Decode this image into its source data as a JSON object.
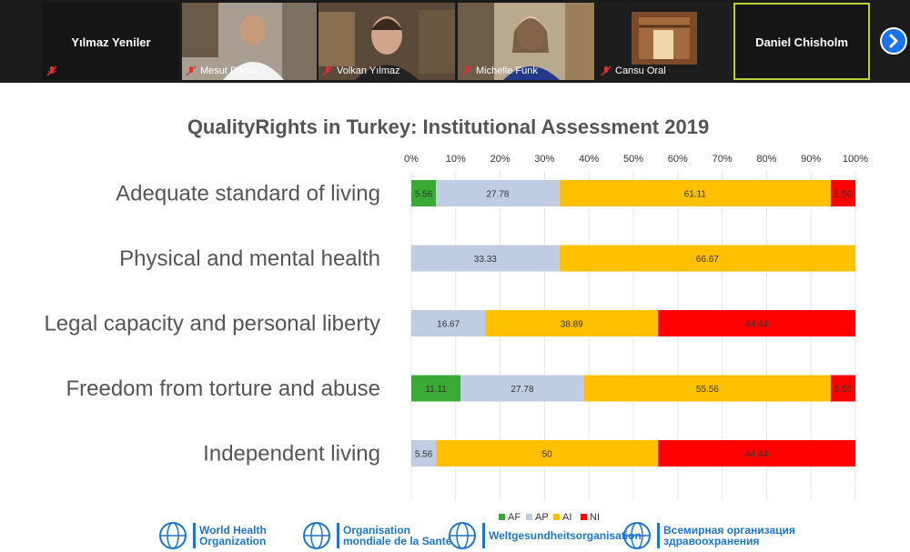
{
  "participants": [
    {
      "name": "Yılmaz Yeniler",
      "style": "name-only"
    },
    {
      "name": "Mesut Demir...",
      "style": "video"
    },
    {
      "name": "Volkan Yılmaz",
      "style": "video"
    },
    {
      "name": "Michelle Funk",
      "style": "video"
    },
    {
      "name": "Cansu Oral",
      "style": "video"
    },
    {
      "name": "Daniel Chisholm",
      "style": "name-only",
      "active": true
    }
  ],
  "colors": {
    "AF": "#3aa935",
    "AP": "#bfcce3",
    "AI": "#ffc000",
    "NI": "#ff0000",
    "strip": "#1b1b1b"
  },
  "chart_data": {
    "type": "bar",
    "orientation": "horizontal-stacked-100",
    "title": "QualityRights in Turkey: Institutional Assessment 2019",
    "x_ticks": [
      "0%",
      "10%",
      "20%",
      "30%",
      "40%",
      "50%",
      "60%",
      "70%",
      "80%",
      "90%",
      "100%"
    ],
    "xlim": [
      0,
      100
    ],
    "categories": [
      "Adequate standard of living",
      "Physical and mental health",
      "Legal capacity and personal liberty",
      "Freedom from torture and abuse",
      "Independent living"
    ],
    "series": [
      {
        "name": "AF",
        "values": [
          5.56,
          0,
          0,
          11.11,
          0
        ]
      },
      {
        "name": "AP",
        "values": [
          27.78,
          33.33,
          16.67,
          27.78,
          5.56
        ]
      },
      {
        "name": "AI",
        "values": [
          61.11,
          66.67,
          38.89,
          55.56,
          50
        ]
      },
      {
        "name": "NI",
        "values": [
          5.56,
          0,
          44.44,
          5.56,
          44.44
        ]
      }
    ],
    "legend": "bottom"
  },
  "footer": {
    "logos": [
      [
        "World Health",
        "Organization"
      ],
      [
        "Organisation",
        "mondiale de la Santé"
      ],
      [
        "Weltgesundheitsorganisation"
      ],
      [
        "Всемирная организация",
        "здравоохранения"
      ]
    ]
  }
}
